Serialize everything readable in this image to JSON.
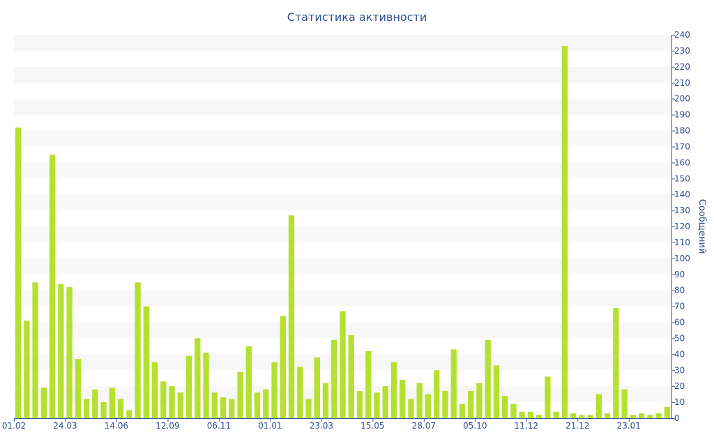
{
  "chart_data": {
    "type": "bar",
    "title": "Статистика активности",
    "xlabel": "",
    "ylabel": "Сообщений",
    "ylim": [
      0,
      240
    ],
    "y_tick_step": 10,
    "y_axis_side": "right",
    "grid": "alternating horizontal bands",
    "legend": "none",
    "colors": {
      "bar": "#b5e02f",
      "band": "#f7f7f7",
      "axis": "#3b5998",
      "text": "#2f4d8f"
    },
    "x_tick_labels": [
      {
        "index": 0,
        "label": "01.02"
      },
      {
        "index": 6,
        "label": "24.03"
      },
      {
        "index": 12,
        "label": "14.06"
      },
      {
        "index": 18,
        "label": "12.09"
      },
      {
        "index": 24,
        "label": "06.11"
      },
      {
        "index": 30,
        "label": "01.01"
      },
      {
        "index": 36,
        "label": "23.03"
      },
      {
        "index": 42,
        "label": "15.05"
      },
      {
        "index": 48,
        "label": "28.07"
      },
      {
        "index": 54,
        "label": "05.10"
      },
      {
        "index": 60,
        "label": "11.12"
      },
      {
        "index": 66,
        "label": "21.12"
      },
      {
        "index": 72,
        "label": "23.01"
      }
    ],
    "values": [
      182,
      61,
      85,
      19,
      165,
      84,
      82,
      37,
      12,
      18,
      10,
      19,
      12,
      5,
      85,
      70,
      35,
      23,
      20,
      16,
      39,
      50,
      41,
      16,
      13,
      12,
      29,
      45,
      16,
      18,
      35,
      64,
      127,
      32,
      12,
      38,
      22,
      49,
      67,
      52,
      17,
      42,
      16,
      20,
      35,
      24,
      12,
      22,
      15,
      30,
      17,
      43,
      9,
      17,
      22,
      49,
      33,
      14,
      9,
      4,
      4,
      2,
      26,
      4,
      233,
      3,
      2,
      2,
      15,
      3,
      69,
      18,
      2,
      3,
      2,
      3,
      7
    ]
  }
}
